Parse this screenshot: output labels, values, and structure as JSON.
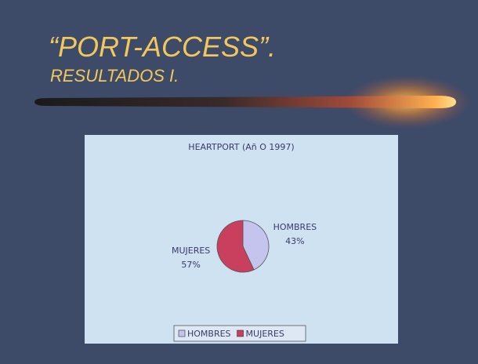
{
  "slide": {
    "title": "“PORT-ACCESS”.",
    "subtitle": "RESULTADOS I."
  },
  "chart_data": {
    "type": "pie",
    "title": "HEARTPORT (Añ O 1997)",
    "categories": [
      "HOMBRES",
      "MUJERES"
    ],
    "values": [
      43,
      57
    ],
    "value_labels": [
      "43%",
      "57%"
    ],
    "colors": [
      "#c4c4ee",
      "#c8405e"
    ],
    "legend": "bottom"
  }
}
